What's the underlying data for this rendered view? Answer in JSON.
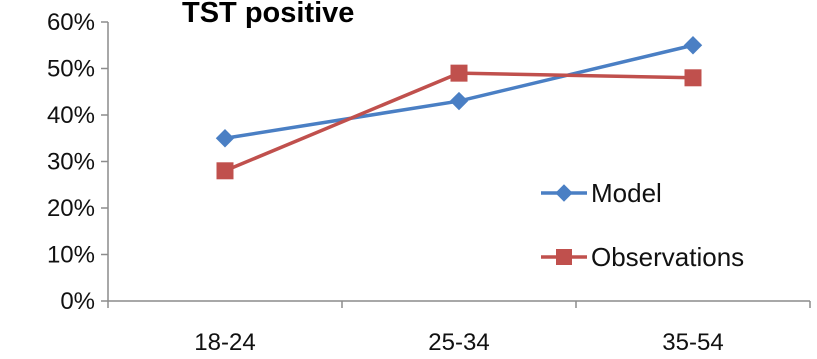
{
  "chart_data": {
    "type": "line",
    "title": "TST positive",
    "categories": [
      "18-24",
      "25-34",
      "35-54"
    ],
    "series": [
      {
        "name": "Model",
        "values": [
          0.35,
          0.43,
          0.55
        ],
        "color": "#4a7fc4",
        "marker": "diamond"
      },
      {
        "name": "Observations",
        "values": [
          0.28,
          0.49,
          0.48
        ],
        "color": "#c0504d",
        "marker": "square"
      }
    ],
    "y_ticks": [
      {
        "value": 0,
        "label": "0%"
      },
      {
        "value": 0.1,
        "label": "10%"
      },
      {
        "value": 0.2,
        "label": "20%"
      },
      {
        "value": 0.3,
        "label": "30%"
      },
      {
        "value": 0.4,
        "label": "40%"
      },
      {
        "value": 0.5,
        "label": "50%"
      },
      {
        "value": 0.6,
        "label": "60%"
      }
    ],
    "ylim": [
      0,
      0.6
    ],
    "grid": false,
    "legend_position": "right"
  }
}
